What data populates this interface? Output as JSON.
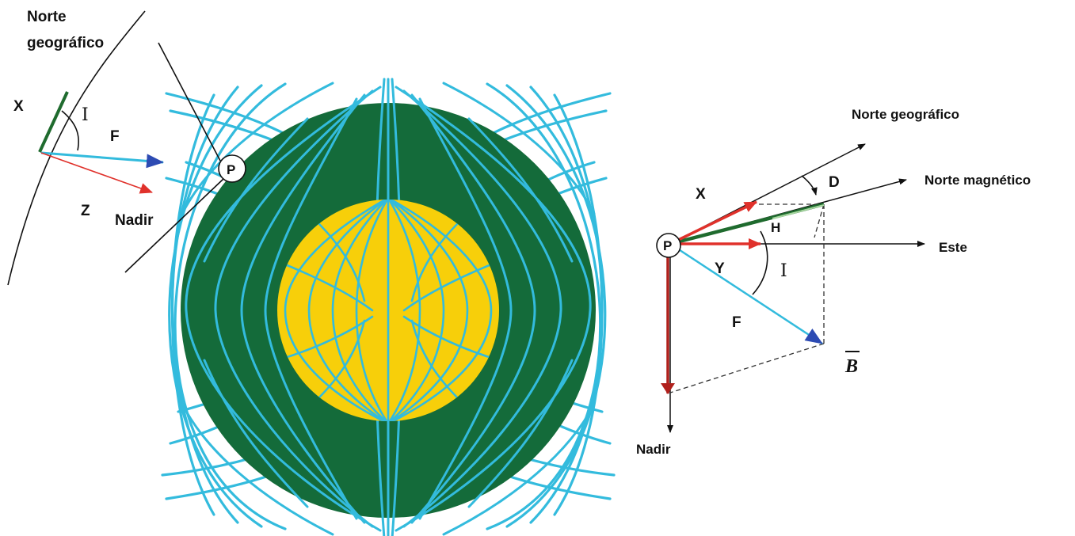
{
  "left_diagram": {
    "north_label_line1": "Norte",
    "north_label_line2": "geográfico",
    "x_label": "X",
    "inclination_label": "I",
    "f_label": "F",
    "z_label": "Z",
    "nadir_label": "Nadir",
    "point_label": "P"
  },
  "right_diagram": {
    "north_geo_label": "Norte geográfico",
    "north_mag_label": "Norte magnético",
    "east_label": "Este",
    "declination_label": "D",
    "x_label": "X",
    "h_label": "H",
    "y_label": "Y",
    "inclination_label": "I",
    "f_label": "F",
    "b_label": "B",
    "nadir_label": "Nadir",
    "point_label": "P"
  },
  "colors": {
    "field_lines": "#33bbdd",
    "mantle": "#146b3a",
    "core": "#f7cf0a",
    "x_arrow": "#e0312b",
    "h_vector": "#1f6b2e",
    "f_arrow_head": "#2d4bb3",
    "z_arrow": "#b0201c"
  }
}
